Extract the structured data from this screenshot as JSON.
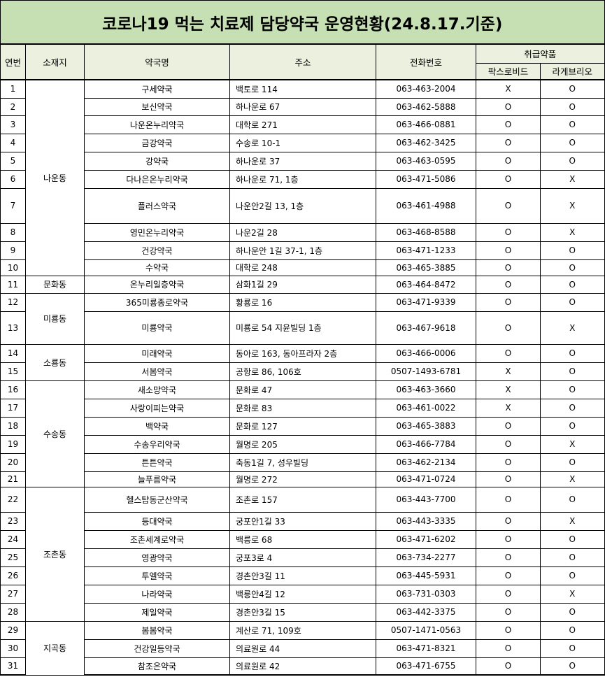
{
  "title": "코로나19 먹는 치료제 담당약국 운영현황(24.8.17.기준)",
  "headers": {
    "no": "연번",
    "region": "소재지",
    "name": "약국명",
    "address": "주소",
    "phone": "전화번호",
    "drugs": "취급약품",
    "paxlovid": "팍스로비드",
    "lagevrio": "라게브리오"
  },
  "rows": [
    {
      "no": "1",
      "region": "나운동",
      "name": "구세약국",
      "address": "백토로 114",
      "phone": "063-463-2004",
      "paxlovid": "X",
      "lagevrio": "O"
    },
    {
      "no": "2",
      "region": "나운동",
      "name": "보신약국",
      "address": "하나운로 67",
      "phone": "063-462-5888",
      "paxlovid": "O",
      "lagevrio": "O"
    },
    {
      "no": "3",
      "region": "나운동",
      "name": "나운온누리약국",
      "address": "대학로 271",
      "phone": "063-466-0881",
      "paxlovid": "O",
      "lagevrio": "O"
    },
    {
      "no": "4",
      "region": "나운동",
      "name": "금강약국",
      "address": "수송로 10-1",
      "phone": "063-462-3425",
      "paxlovid": "O",
      "lagevrio": "O"
    },
    {
      "no": "5",
      "region": "나운동",
      "name": "강약국",
      "address": "하나운로 37",
      "phone": "063-463-0595",
      "paxlovid": "O",
      "lagevrio": "O"
    },
    {
      "no": "6",
      "region": "나운동",
      "name": "다나은온누리약국",
      "address": "하나운로 71, 1층",
      "phone": "063-471-5086",
      "paxlovid": "O",
      "lagevrio": "X"
    },
    {
      "no": "7",
      "region": "나운동",
      "name": "플러스약국",
      "address": "나운안2길 13, 1층",
      "phone": "063-461-4988",
      "paxlovid": "O",
      "lagevrio": "X"
    },
    {
      "no": "8",
      "region": "나운동",
      "name": "영민온누리약국",
      "address": "나운2길 28",
      "phone": "063-468-8588",
      "paxlovid": "O",
      "lagevrio": "X"
    },
    {
      "no": "9",
      "region": "나운동",
      "name": "건강약국",
      "address": "하나운안 1길 37-1, 1층",
      "phone": "063-471-1233",
      "paxlovid": "O",
      "lagevrio": "O"
    },
    {
      "no": "10",
      "region": "나운동",
      "name": "수약국",
      "address": "대학로 248",
      "phone": "063-465-3885",
      "paxlovid": "O",
      "lagevrio": "O"
    },
    {
      "no": "11",
      "region": "문화동",
      "name": "온누리일층약국",
      "address": "삼화1길 29",
      "phone": "063-464-8472",
      "paxlovid": "O",
      "lagevrio": "O"
    },
    {
      "no": "12",
      "region": "미룡동",
      "name": "365미룡종로약국",
      "address": "황룡로 16",
      "phone": "063-471-9339",
      "paxlovid": "O",
      "lagevrio": "O"
    },
    {
      "no": "13",
      "region": "미룡동",
      "name": "미룡약국",
      "address": "미룡로 54 지윤빌딩 1층",
      "phone": "063-467-9618",
      "paxlovid": "O",
      "lagevrio": "X"
    },
    {
      "no": "14",
      "region": "소룡동",
      "name": "미래약국",
      "address": "동아로 163, 동아프라자 2층",
      "phone": "063-466-0006",
      "paxlovid": "O",
      "lagevrio": "O"
    },
    {
      "no": "15",
      "region": "소룡동",
      "name": "서봄약국",
      "address": "공항로 86, 106호",
      "phone": "0507-1493-6781",
      "paxlovid": "X",
      "lagevrio": "O"
    },
    {
      "no": "16",
      "region": "수송동",
      "name": "새소망약국",
      "address": "문화로 47",
      "phone": "063-463-3660",
      "paxlovid": "X",
      "lagevrio": "O"
    },
    {
      "no": "17",
      "region": "수송동",
      "name": "사랑이피는약국",
      "address": "문화로 83",
      "phone": "063-461-0022",
      "paxlovid": "X",
      "lagevrio": "O"
    },
    {
      "no": "18",
      "region": "수송동",
      "name": "백약국",
      "address": "문화로 127",
      "phone": "063-465-3883",
      "paxlovid": "O",
      "lagevrio": "O"
    },
    {
      "no": "19",
      "region": "수송동",
      "name": "수송우리약국",
      "address": "월명로 205",
      "phone": "063-466-7784",
      "paxlovid": "O",
      "lagevrio": "X"
    },
    {
      "no": "20",
      "region": "수송동",
      "name": "튼튼약국",
      "address": "축동1길 7, 성우빌딩",
      "phone": "063-462-2134",
      "paxlovid": "O",
      "lagevrio": "O"
    },
    {
      "no": "21",
      "region": "수송동",
      "name": "늘푸름약국",
      "address": "월명로 272",
      "phone": "063-471-0724",
      "paxlovid": "O",
      "lagevrio": "X"
    },
    {
      "no": "22",
      "region": "조촌동",
      "name": "헬스탑동군산약국",
      "address": "조촌로 157",
      "phone": "063-443-7700",
      "paxlovid": "O",
      "lagevrio": "O"
    },
    {
      "no": "23",
      "region": "조촌동",
      "name": "등대약국",
      "address": "궁포안1길 33",
      "phone": "063-443-3335",
      "paxlovid": "O",
      "lagevrio": "X"
    },
    {
      "no": "24",
      "region": "조촌동",
      "name": "조촌세계로약국",
      "address": "백릉로 68",
      "phone": "063-471-6202",
      "paxlovid": "O",
      "lagevrio": "O"
    },
    {
      "no": "25",
      "region": "조촌동",
      "name": "영광약국",
      "address": "궁포3로 4",
      "phone": "063-734-2277",
      "paxlovid": "O",
      "lagevrio": "O"
    },
    {
      "no": "26",
      "region": "조촌동",
      "name": "투엘약국",
      "address": "경촌안3길 11",
      "phone": "063-445-5931",
      "paxlovid": "O",
      "lagevrio": "O"
    },
    {
      "no": "27",
      "region": "조촌동",
      "name": "나라약국",
      "address": "백릉안4길 12",
      "phone": "063-731-0303",
      "paxlovid": "O",
      "lagevrio": "X"
    },
    {
      "no": "28",
      "region": "조촌동",
      "name": "제일약국",
      "address": "경촌안3길 15",
      "phone": "063-442-3375",
      "paxlovid": "O",
      "lagevrio": "O"
    },
    {
      "no": "29",
      "region": "지곡동",
      "name": "봄봄약국",
      "address": "계산로 71, 109호",
      "phone": "0507-1471-0563",
      "paxlovid": "O",
      "lagevrio": "O"
    },
    {
      "no": "30",
      "region": "지곡동",
      "name": "건강일등약국",
      "address": "의료원로 44",
      "phone": "063-471-8321",
      "paxlovid": "O",
      "lagevrio": "O"
    },
    {
      "no": "31",
      "region": "지곡동",
      "name": "참조은약국",
      "address": "의료원로 42",
      "phone": "063-471-6755",
      "paxlovid": "O",
      "lagevrio": "O"
    }
  ]
}
